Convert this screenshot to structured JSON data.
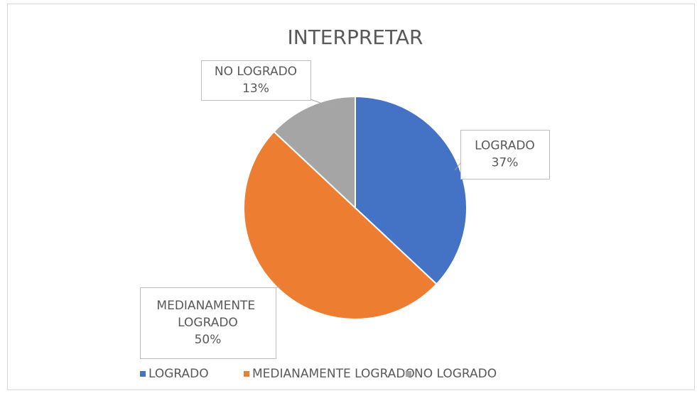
{
  "chart_data": {
    "type": "pie",
    "title": "INTERPRETAR",
    "categories": [
      "LOGRADO",
      "MEDIANAMENTE LOGRADO",
      "NO LOGRADO"
    ],
    "values": [
      37,
      50,
      13
    ],
    "value_labels": [
      "37%",
      "50%",
      "13%"
    ],
    "colors": [
      "#4472c4",
      "#ed7d31",
      "#a5a5a5"
    ],
    "legend": "bottom"
  }
}
